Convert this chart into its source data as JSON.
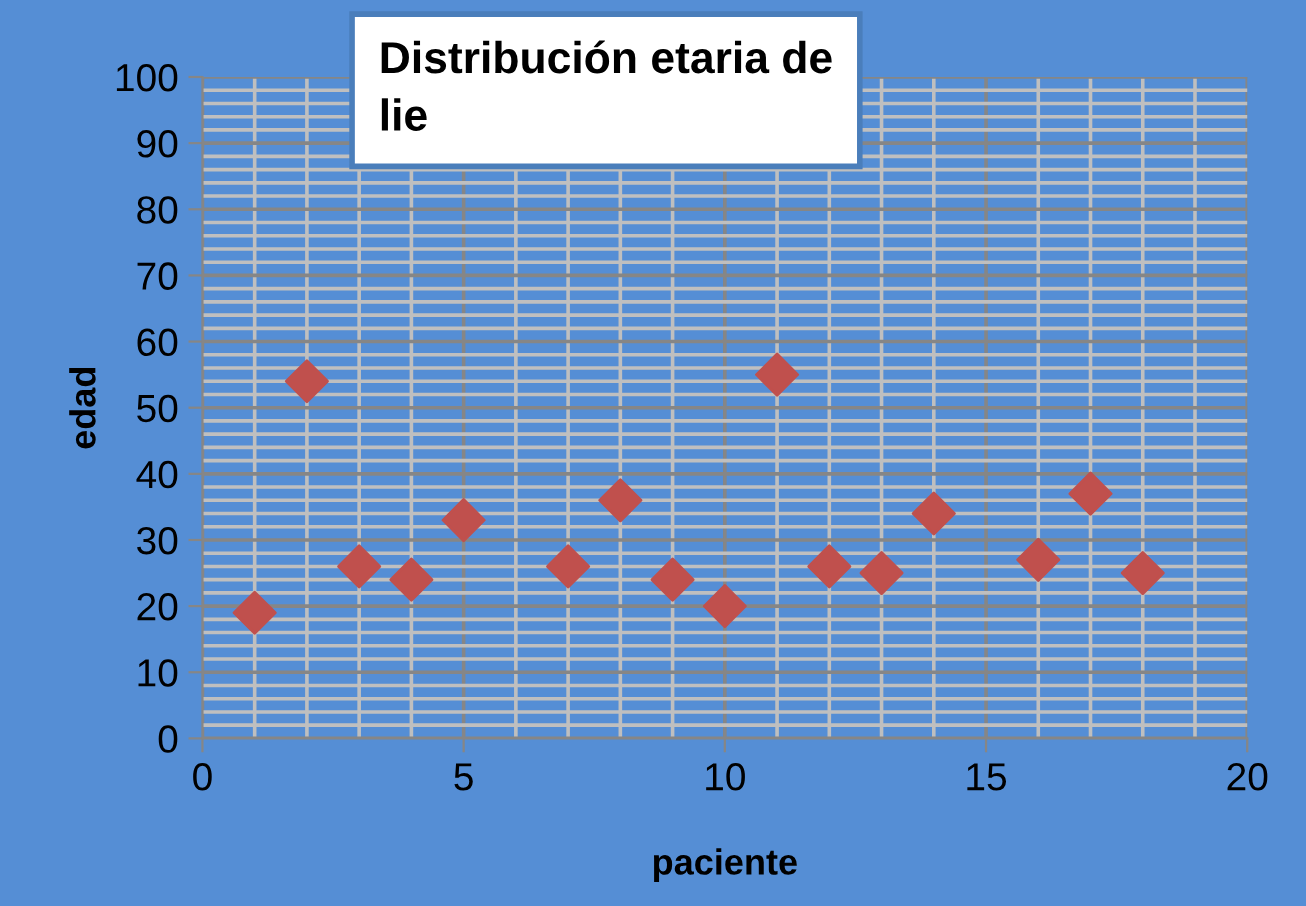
{
  "chart_data": {
    "type": "scatter",
    "title": "Distribución etaria de\nlie",
    "xlabel": "paciente",
    "ylabel": "edad",
    "x": [
      1,
      2,
      3,
      4,
      5,
      7,
      8,
      9,
      10,
      11,
      12,
      13,
      14,
      16,
      17,
      18
    ],
    "series": [
      {
        "color": "#c0504d",
        "values": [
          19,
          54,
          26,
          24,
          33,
          26,
          36,
          24,
          20,
          55,
          26,
          25,
          34,
          27,
          37,
          25
        ]
      }
    ],
    "marker": "diamond",
    "xlim": [
      0,
      20
    ],
    "ylim": [
      0,
      100
    ],
    "xticks": [
      0,
      5,
      10,
      15,
      20
    ],
    "yticks": [
      0,
      10,
      20,
      30,
      40,
      50,
      60,
      70,
      80,
      90,
      100
    ],
    "grid": true,
    "legend": false
  }
}
